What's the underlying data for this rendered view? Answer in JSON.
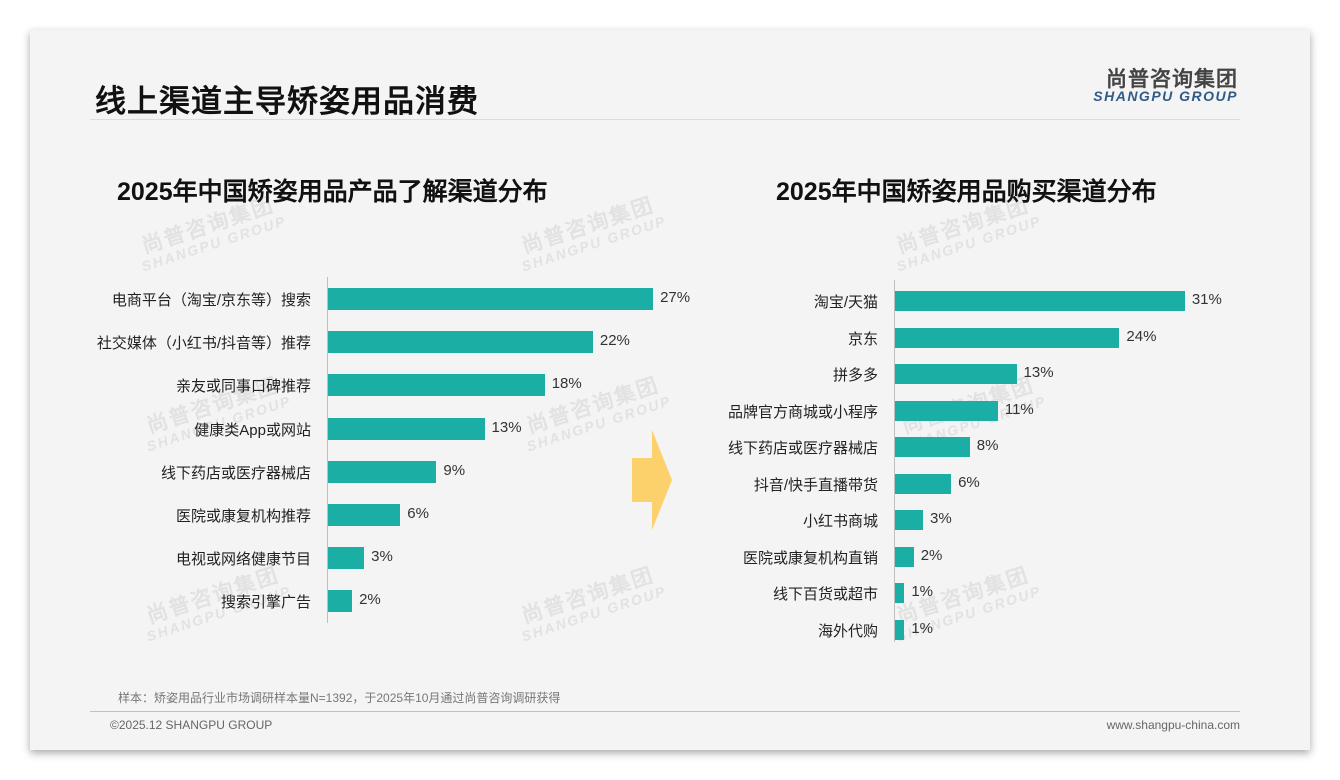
{
  "header": {
    "title": "线上渠道主导矫姿用品消费"
  },
  "logo": {
    "cn": "尚普咨询集团",
    "en": "SHANGPU GROUP"
  },
  "watermark": {
    "cn": "尚普咨询集团",
    "en": "SHANGPU GROUP"
  },
  "chart_data": [
    {
      "type": "bar",
      "orientation": "horizontal",
      "title": "2025年中国矫姿用品产品了解渠道分布",
      "categories": [
        "电商平台（淘宝/京东等）搜索",
        "社交媒体（小红书/抖音等）推荐",
        "亲友或同事口碑推荐",
        "健康类App或网站",
        "线下药店或医疗器械店",
        "医院或康复机构推荐",
        "电视或网络健康节目",
        "搜索引擎广告"
      ],
      "values": [
        27,
        22,
        18,
        13,
        9,
        6,
        3,
        2
      ],
      "labels": [
        "27%",
        "22%",
        "18%",
        "13%",
        "9%",
        "6%",
        "3%",
        "2%"
      ],
      "unit": "%",
      "color": "#1aaea5"
    },
    {
      "type": "bar",
      "orientation": "horizontal",
      "title": "2025年中国矫姿用品购买渠道分布",
      "categories": [
        "淘宝/天猫",
        "京东",
        "拼多多",
        "品牌官方商城或小程序",
        "线下药店或医疗器械店",
        "抖音/快手直播带货",
        "小红书商城",
        "医院或康复机构直销",
        "线下百货或超市",
        "海外代购"
      ],
      "values": [
        31,
        24,
        13,
        11,
        8,
        6,
        3,
        2,
        1,
        1
      ],
      "labels": [
        "31%",
        "24%",
        "13%",
        "11%",
        "8%",
        "6%",
        "3%",
        "2%",
        "1%",
        "1%"
      ],
      "unit": "%",
      "color": "#1aaea5"
    }
  ],
  "footer": {
    "note": "样本：矫姿用品行业市场调研样本量N=1392，于2025年10月通过尚普咨询调研获得",
    "copyright": "©2025.12 SHANGPU GROUP",
    "website": "www.shangpu-china.com"
  },
  "colors": {
    "bar": "#1aaea5",
    "arrow": "#fcd06a",
    "brand": "#2f5b86"
  }
}
